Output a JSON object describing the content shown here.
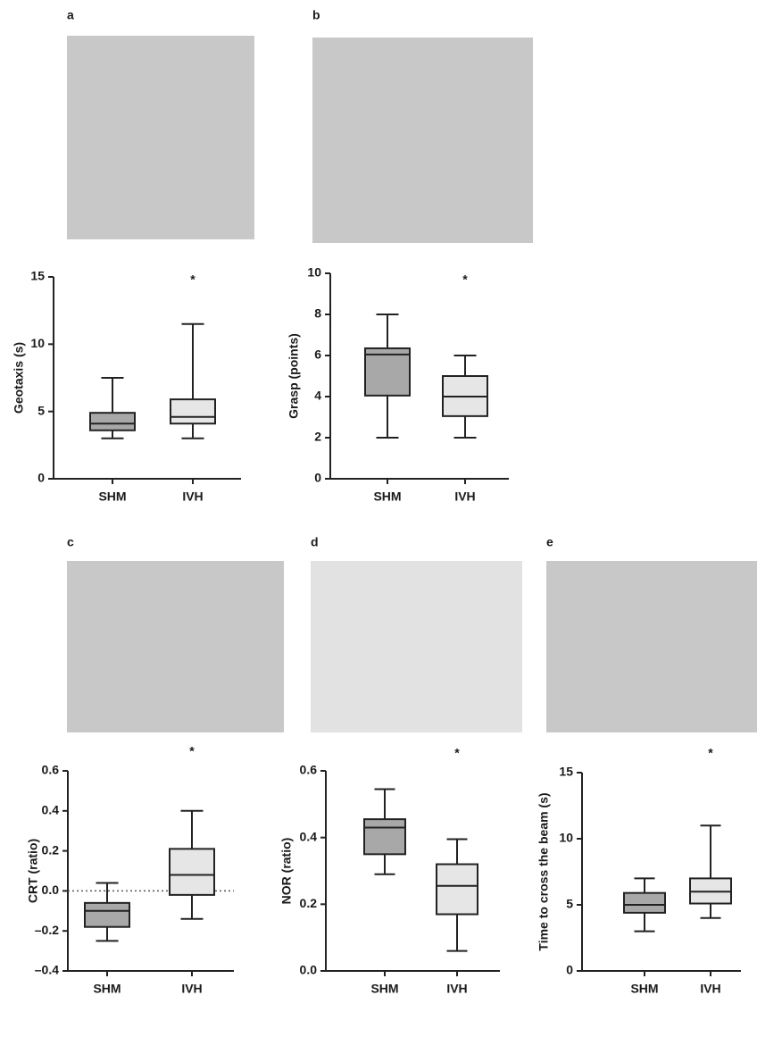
{
  "chart_data": [
    {
      "type": "box",
      "panel": "a",
      "ylabel": "Geotaxis (s)",
      "ylim": [
        0,
        15
      ],
      "yticks": [
        0,
        5,
        10,
        15
      ],
      "annotation": "*",
      "series": [
        {
          "name": "SHM",
          "color": "#a8a8a8",
          "stats": {
            "min": 3,
            "q1": 3.6,
            "median": 4.1,
            "q3": 4.9,
            "max": 7.5
          }
        },
        {
          "name": "IVH",
          "color": "#e6e6e6",
          "stats": {
            "min": 3,
            "q1": 4.1,
            "median": 4.6,
            "q3": 5.9,
            "max": 11.5
          }
        }
      ]
    },
    {
      "type": "box",
      "panel": "b",
      "ylabel": "Grasp (points)",
      "ylim": [
        0,
        10
      ],
      "yticks": [
        0,
        2,
        4,
        6,
        8,
        10
      ],
      "annotation": "*",
      "series": [
        {
          "name": "SHM",
          "color": "#a8a8a8",
          "stats": {
            "min": 2,
            "q1": 4.05,
            "median": 6.05,
            "q3": 6.35,
            "max": 8
          }
        },
        {
          "name": "IVH",
          "color": "#e6e6e6",
          "stats": {
            "min": 2,
            "q1": 3.05,
            "median": 4.0,
            "q3": 5.0,
            "max": 6.0
          }
        }
      ]
    },
    {
      "type": "box",
      "panel": "c",
      "ylabel": "CRT (ratio)",
      "ylim": [
        -0.4,
        0.6
      ],
      "yticks": [
        {
          "value": -0.4,
          "label": "–0.4"
        },
        {
          "value": -0.2,
          "label": "–0.2"
        },
        {
          "value": 0,
          "label": "0.0"
        },
        0.2,
        0.4,
        0.6
      ],
      "reference_line": 0,
      "annotation": "*",
      "series": [
        {
          "name": "SHM",
          "color": "#a8a8a8",
          "stats": {
            "min": -0.25,
            "q1": -0.18,
            "median": -0.1,
            "q3": -0.06,
            "max": 0.04
          }
        },
        {
          "name": "IVH",
          "color": "#e6e6e6",
          "stats": {
            "min": -0.14,
            "q1": -0.02,
            "median": 0.08,
            "q3": 0.21,
            "max": 0.4
          }
        }
      ]
    },
    {
      "type": "box",
      "panel": "d",
      "ylabel": "NOR (ratio)",
      "ylim": [
        0,
        0.6
      ],
      "yticks": [
        {
          "value": 0,
          "label": "0.0"
        },
        0.2,
        0.4,
        0.6
      ],
      "annotation": "*",
      "series": [
        {
          "name": "SHM",
          "color": "#a8a8a8",
          "stats": {
            "min": 0.29,
            "q1": 0.35,
            "median": 0.43,
            "q3": 0.455,
            "max": 0.545
          }
        },
        {
          "name": "IVH",
          "color": "#e6e6e6",
          "stats": {
            "min": 0.06,
            "q1": 0.17,
            "median": 0.255,
            "q3": 0.32,
            "max": 0.395
          }
        }
      ]
    },
    {
      "type": "box",
      "panel": "e",
      "ylabel": "Time to cross the beam (s)",
      "ylim": [
        0,
        15
      ],
      "yticks": [
        0,
        5,
        10,
        15
      ],
      "annotation": "*",
      "series": [
        {
          "name": "SHM",
          "color": "#a8a8a8",
          "stats": {
            "min": 3,
            "q1": 4.4,
            "median": 5,
            "q3": 5.9,
            "max": 7
          }
        },
        {
          "name": "IVH",
          "color": "#e6e6e6",
          "stats": {
            "min": 4,
            "q1": 5.1,
            "median": 6,
            "q3": 7,
            "max": 11
          }
        }
      ]
    }
  ]
}
